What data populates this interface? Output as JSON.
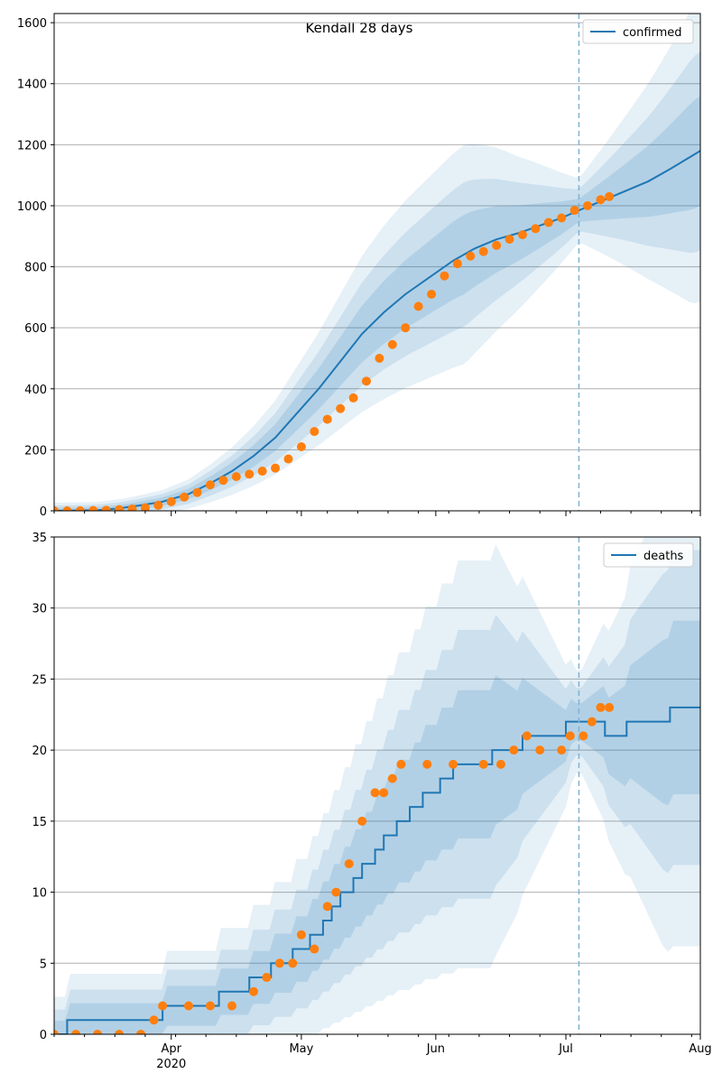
{
  "figure": {
    "title": "Kendall 28 days"
  },
  "colors": {
    "line": "#1f77b4",
    "band": "#1f77b4",
    "observed": "#ff7f0e",
    "grid": "#b0b0b0",
    "vline": "#7fb2d6"
  },
  "x_axis": {
    "ticks": [
      {
        "date": "2020-04-01",
        "label": "Apr",
        "sub": "2020"
      },
      {
        "date": "2020-05-01",
        "label": "May",
        "sub": ""
      },
      {
        "date": "2020-06-01",
        "label": "Jun",
        "sub": ""
      },
      {
        "date": "2020-07-01",
        "label": "Jul",
        "sub": ""
      },
      {
        "date": "2020-08-01",
        "label": "Aug",
        "sub": ""
      }
    ]
  },
  "chart_data": [
    {
      "type": "line",
      "name": "confirmed",
      "xlim": [
        "2020-03-05",
        "2020-08-01"
      ],
      "ylim": [
        0,
        1630
      ],
      "yticks": [
        0,
        200,
        400,
        600,
        800,
        1000,
        1200,
        1400,
        1600
      ],
      "grid": "horizontal",
      "legend": "top-right",
      "forecast_start": "2020-07-04",
      "series": [
        {
          "name": "confirmed",
          "style": "model line",
          "points": [
            [
              "2020-03-05",
              0
            ],
            [
              "2020-03-15",
              2
            ],
            [
              "2020-03-20",
              8
            ],
            [
              "2020-03-25",
              18
            ],
            [
              "2020-03-30",
              30
            ],
            [
              "2020-04-05",
              55
            ],
            [
              "2020-04-10",
              90
            ],
            [
              "2020-04-15",
              130
            ],
            [
              "2020-04-20",
              180
            ],
            [
              "2020-04-25",
              240
            ],
            [
              "2020-04-30",
              320
            ],
            [
              "2020-05-05",
              400
            ],
            [
              "2020-05-10",
              490
            ],
            [
              "2020-05-15",
              580
            ],
            [
              "2020-05-20",
              650
            ],
            [
              "2020-05-25",
              710
            ],
            [
              "2020-05-30",
              760
            ],
            [
              "2020-06-05",
              820
            ],
            [
              "2020-06-10",
              860
            ],
            [
              "2020-06-15",
              890
            ],
            [
              "2020-06-20",
              910
            ],
            [
              "2020-06-25",
              935
            ],
            [
              "2020-06-30",
              960
            ],
            [
              "2020-07-04",
              985
            ],
            [
              "2020-07-10",
              1020
            ],
            [
              "2020-07-15",
              1050
            ],
            [
              "2020-07-20",
              1080
            ],
            [
              "2020-07-25",
              1120
            ],
            [
              "2020-08-01",
              1180
            ]
          ]
        },
        {
          "name": "",
          "style": "observed points",
          "points": [
            [
              "2020-03-05",
              0
            ],
            [
              "2020-03-08",
              0
            ],
            [
              "2020-03-11",
              0
            ],
            [
              "2020-03-14",
              1
            ],
            [
              "2020-03-17",
              2
            ],
            [
              "2020-03-20",
              4
            ],
            [
              "2020-03-23",
              6
            ],
            [
              "2020-03-26",
              10
            ],
            [
              "2020-03-29",
              18
            ],
            [
              "2020-04-01",
              30
            ],
            [
              "2020-04-04",
              45
            ],
            [
              "2020-04-07",
              60
            ],
            [
              "2020-04-10",
              85
            ],
            [
              "2020-04-13",
              100
            ],
            [
              "2020-04-16",
              112
            ],
            [
              "2020-04-19",
              120
            ],
            [
              "2020-04-22",
              130
            ],
            [
              "2020-04-25",
              140
            ],
            [
              "2020-04-28",
              170
            ],
            [
              "2020-05-01",
              210
            ],
            [
              "2020-05-04",
              260
            ],
            [
              "2020-05-07",
              300
            ],
            [
              "2020-05-10",
              335
            ],
            [
              "2020-05-13",
              370
            ],
            [
              "2020-05-16",
              425
            ],
            [
              "2020-05-19",
              500
            ],
            [
              "2020-05-22",
              545
            ],
            [
              "2020-05-25",
              600
            ],
            [
              "2020-05-28",
              670
            ],
            [
              "2020-05-31",
              710
            ],
            [
              "2020-06-03",
              770
            ],
            [
              "2020-06-06",
              810
            ],
            [
              "2020-06-09",
              835
            ],
            [
              "2020-06-12",
              850
            ],
            [
              "2020-06-15",
              870
            ],
            [
              "2020-06-18",
              890
            ],
            [
              "2020-06-21",
              905
            ],
            [
              "2020-06-24",
              925
            ],
            [
              "2020-06-27",
              945
            ],
            [
              "2020-06-30",
              960
            ],
            [
              "2020-07-03",
              985
            ],
            [
              "2020-07-06",
              1000
            ],
            [
              "2020-07-09",
              1020
            ],
            [
              "2020-07-11",
              1030
            ]
          ]
        }
      ]
    },
    {
      "type": "line",
      "name": "deaths",
      "xlim": [
        "2020-03-05",
        "2020-08-01"
      ],
      "ylim": [
        0,
        35
      ],
      "yticks": [
        0,
        5,
        10,
        15,
        20,
        25,
        30,
        35
      ],
      "grid": "horizontal",
      "legend": "top-right",
      "forecast_start": "2020-07-04",
      "series": [
        {
          "name": "deaths",
          "style": "model step line",
          "points": [
            [
              "2020-03-05",
              0
            ],
            [
              "2020-03-08",
              1
            ],
            [
              "2020-03-30",
              2
            ],
            [
              "2020-04-12",
              3
            ],
            [
              "2020-04-19",
              4
            ],
            [
              "2020-04-24",
              5
            ],
            [
              "2020-04-29",
              6
            ],
            [
              "2020-05-03",
              7
            ],
            [
              "2020-05-06",
              8
            ],
            [
              "2020-05-08",
              9
            ],
            [
              "2020-05-10",
              10
            ],
            [
              "2020-05-13",
              11
            ],
            [
              "2020-05-15",
              12
            ],
            [
              "2020-05-18",
              13
            ],
            [
              "2020-05-20",
              14
            ],
            [
              "2020-05-23",
              15
            ],
            [
              "2020-05-26",
              16
            ],
            [
              "2020-05-29",
              17
            ],
            [
              "2020-06-02",
              18
            ],
            [
              "2020-06-05",
              19
            ],
            [
              "2020-06-14",
              20
            ],
            [
              "2020-06-21",
              21
            ],
            [
              "2020-07-01",
              22
            ],
            [
              "2020-07-10",
              21
            ],
            [
              "2020-07-15",
              22
            ],
            [
              "2020-07-25",
              23
            ],
            [
              "2020-08-01",
              23
            ]
          ]
        },
        {
          "name": "",
          "style": "observed points",
          "points": [
            [
              "2020-03-05",
              0
            ],
            [
              "2020-03-10",
              0
            ],
            [
              "2020-03-15",
              0
            ],
            [
              "2020-03-20",
              0
            ],
            [
              "2020-03-25",
              0
            ],
            [
              "2020-03-28",
              1
            ],
            [
              "2020-03-30",
              2
            ],
            [
              "2020-04-05",
              2
            ],
            [
              "2020-04-10",
              2
            ],
            [
              "2020-04-15",
              2
            ],
            [
              "2020-04-20",
              3
            ],
            [
              "2020-04-23",
              4
            ],
            [
              "2020-04-26",
              5
            ],
            [
              "2020-04-29",
              5
            ],
            [
              "2020-05-01",
              7
            ],
            [
              "2020-05-04",
              6
            ],
            [
              "2020-05-07",
              9
            ],
            [
              "2020-05-09",
              10
            ],
            [
              "2020-05-12",
              12
            ],
            [
              "2020-05-15",
              15
            ],
            [
              "2020-05-18",
              17
            ],
            [
              "2020-05-20",
              17
            ],
            [
              "2020-05-22",
              18
            ],
            [
              "2020-05-24",
              19
            ],
            [
              "2020-05-30",
              19
            ],
            [
              "2020-06-05",
              19
            ],
            [
              "2020-06-12",
              19
            ],
            [
              "2020-06-16",
              19
            ],
            [
              "2020-06-19",
              20
            ],
            [
              "2020-06-22",
              21
            ],
            [
              "2020-06-25",
              20
            ],
            [
              "2020-06-30",
              20
            ],
            [
              "2020-07-02",
              21
            ],
            [
              "2020-07-05",
              21
            ],
            [
              "2020-07-07",
              22
            ],
            [
              "2020-07-09",
              23
            ],
            [
              "2020-07-11",
              23
            ]
          ]
        }
      ]
    }
  ]
}
